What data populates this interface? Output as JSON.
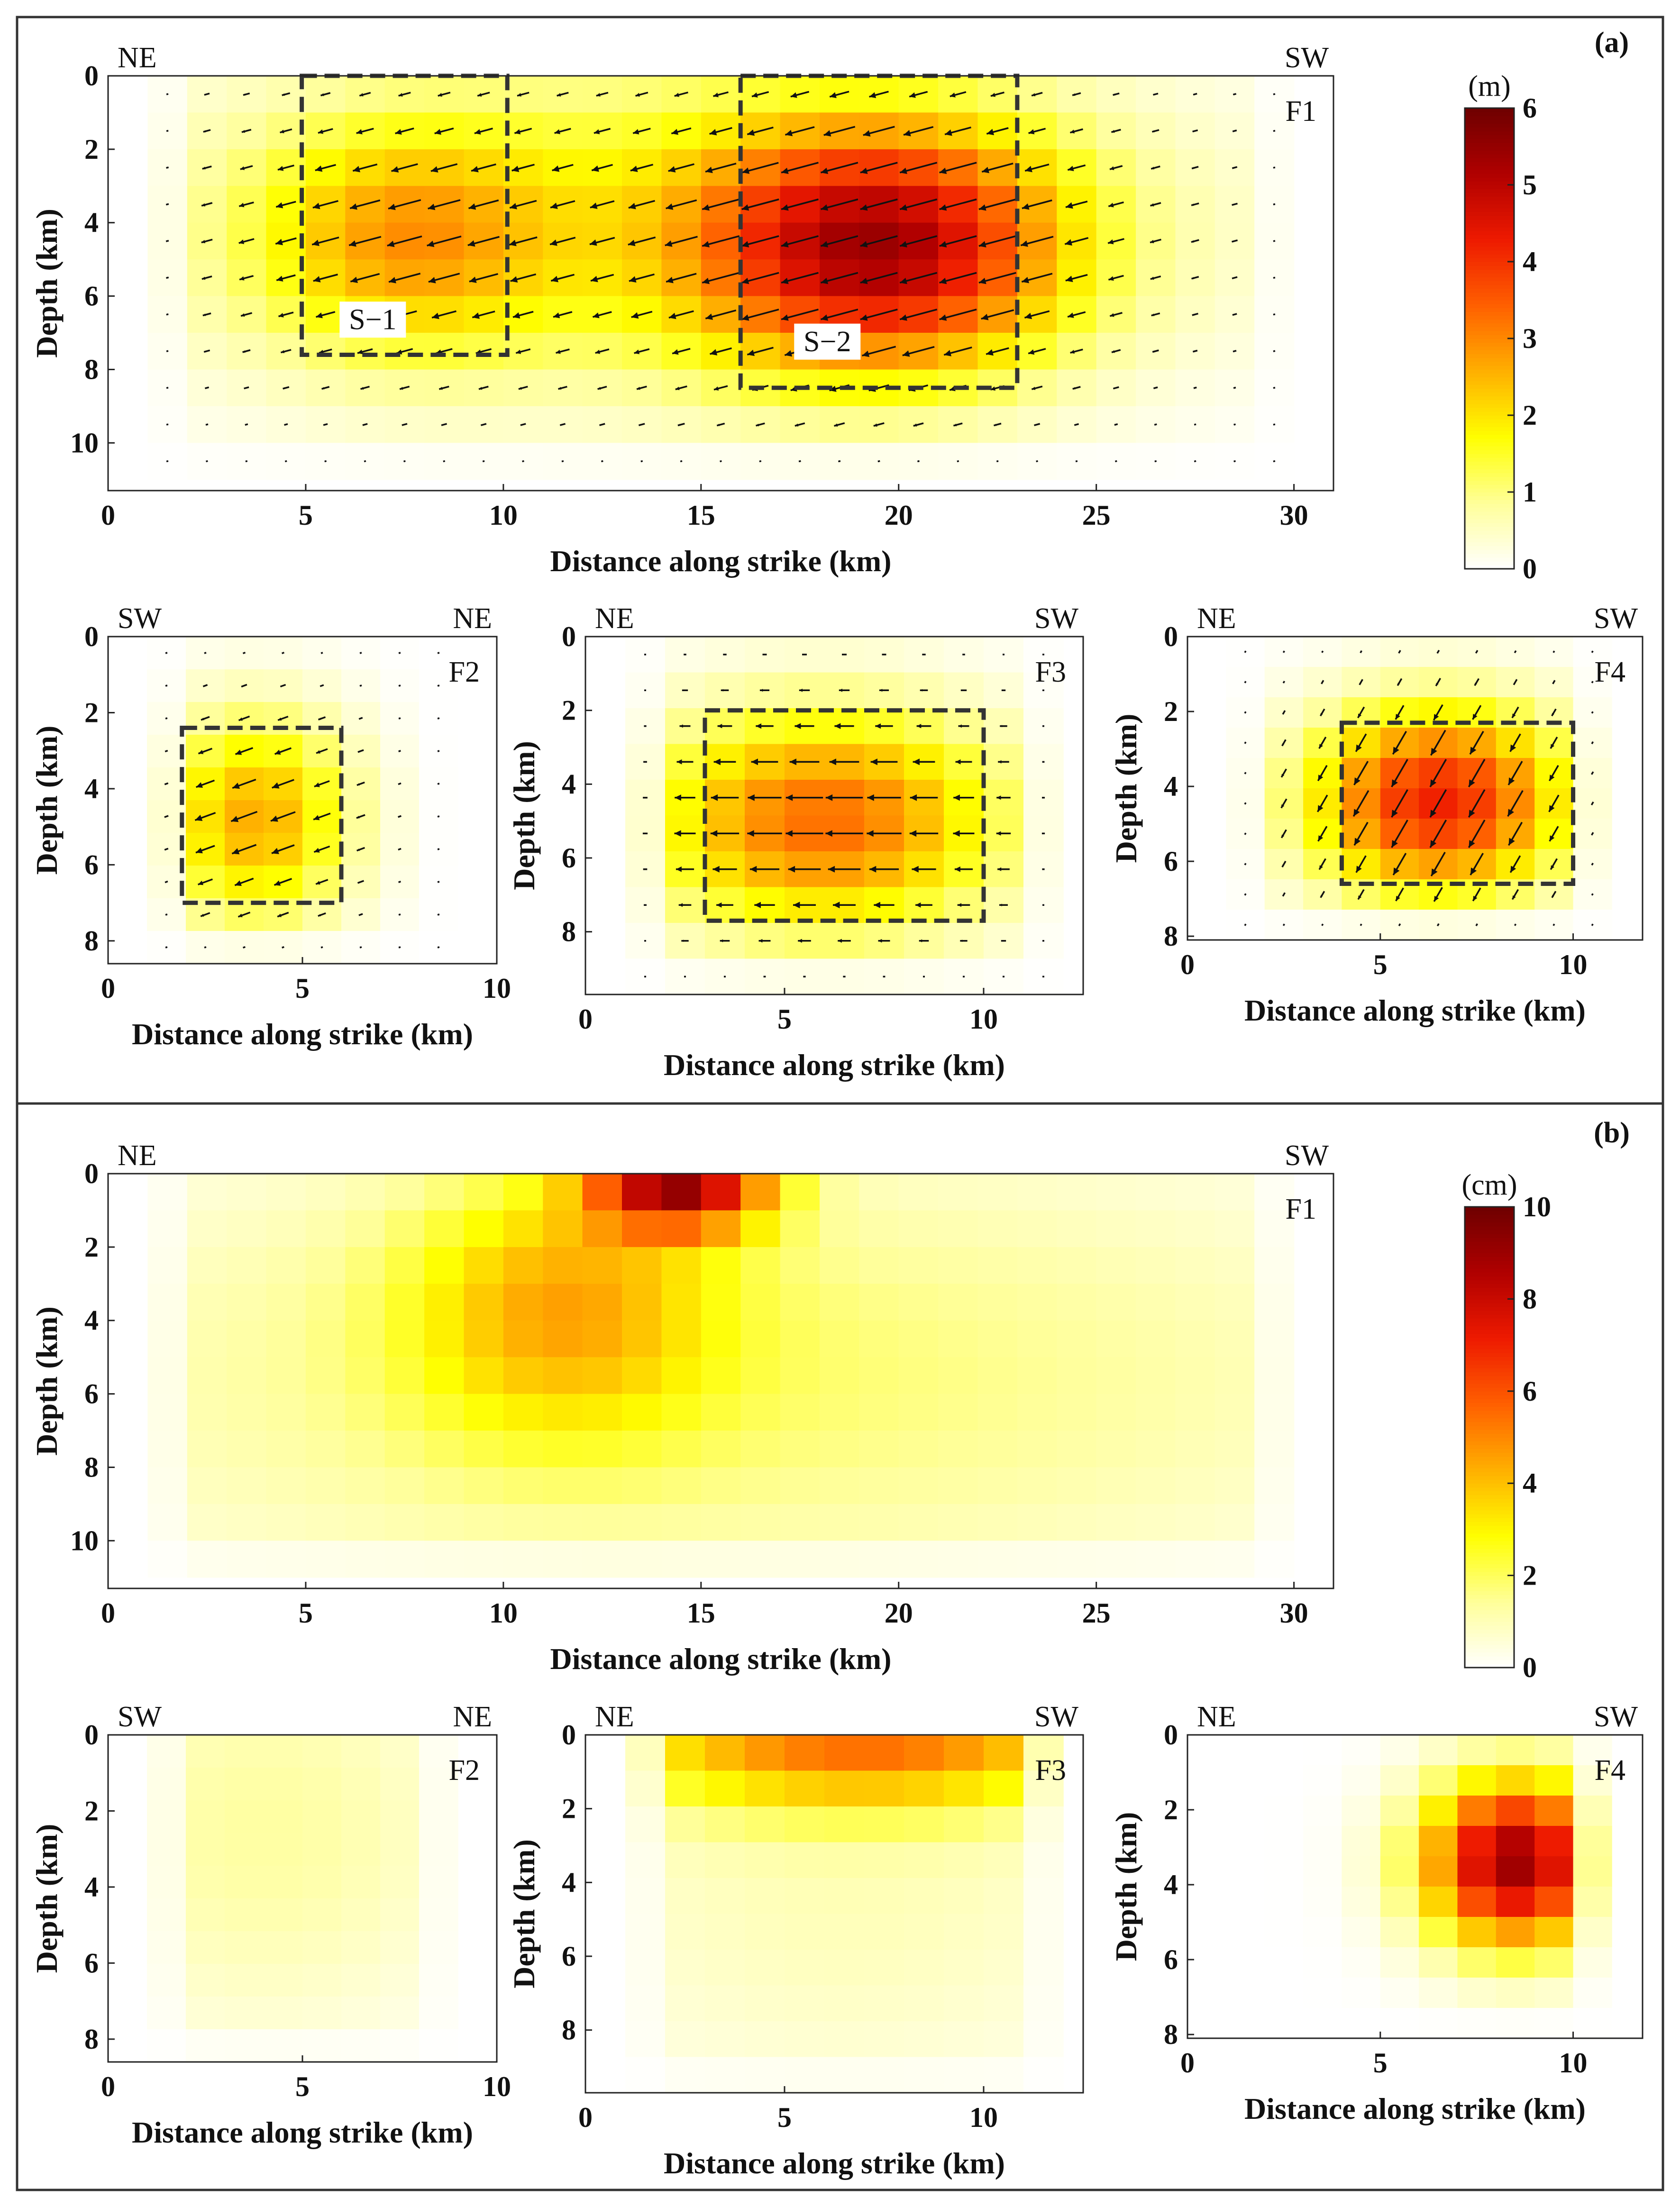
{
  "figure": {
    "panel_a_label": "(a)",
    "panel_b_label": "(b)"
  },
  "colorbars": {
    "a": {
      "unit": "(m)",
      "ticks": [
        "0",
        "1",
        "2",
        "3",
        "4",
        "5",
        "6"
      ],
      "min": 0,
      "max": 6
    },
    "b": {
      "unit": "(cm)",
      "ticks": [
        "0",
        "2",
        "4",
        "6",
        "8",
        "10"
      ],
      "min": 0,
      "max": 10
    }
  },
  "colors": {
    "colormap": [
      "#ffffff",
      "#ffff99",
      "#ffff00",
      "#ffb000",
      "#ff6000",
      "#ee1a00",
      "#b00000",
      "#6e0000"
    ],
    "box": "#333333",
    "arrow": "#111111",
    "frame": "#222222"
  },
  "chart_data": [
    {
      "id": "a-F1",
      "type": "heatmap",
      "quantity": "coseismic slip",
      "unit": "m",
      "fault": "F1",
      "left_dir": "NE",
      "right_dir": "SW",
      "xlabel": "Distance along strike (km)",
      "ylabel": "Depth (km)",
      "xlim": [
        0,
        31
      ],
      "ylim": [
        0,
        11.3
      ],
      "xticks": [
        0,
        5,
        10,
        15,
        20,
        25,
        30
      ],
      "yticks": [
        0,
        2,
        4,
        6,
        8,
        10
      ],
      "grid": {
        "x0": 1,
        "x1": 30,
        "dx": 1,
        "y0": 0,
        "y1": 11,
        "dy": 1
      },
      "asperities": [
        {
          "label": "S−1",
          "x0": 4.9,
          "x1": 10.1,
          "y0": 0,
          "y1": 7.6,
          "label_x": 6.0,
          "label_y": 6.9
        },
        {
          "label": "S−2",
          "x0": 16.0,
          "x1": 23.0,
          "y0": 0,
          "y1": 8.5,
          "label_x": 17.5,
          "label_y": 7.5
        }
      ],
      "peaks": [
        {
          "cx": 19.5,
          "cy": 4.7,
          "sx": 3.2,
          "sy": 2.4,
          "amp": 4.2
        },
        {
          "cx": 7.5,
          "cy": 4.5,
          "sx": 2.6,
          "sy": 2.2,
          "amp": 1.8
        },
        {
          "cx": 14,
          "cy": 4,
          "sx": 9,
          "sy": 3.4,
          "amp": 1.5
        }
      ],
      "max": 6,
      "arrows": true,
      "rake_deg": 195
    },
    {
      "id": "a-F2",
      "type": "heatmap",
      "quantity": "coseismic slip",
      "unit": "m",
      "fault": "F2",
      "left_dir": "SW",
      "right_dir": "NE",
      "xlabel": "Distance along strike (km)",
      "ylabel": "Depth (km)",
      "xlim": [
        0,
        10
      ],
      "ylim": [
        0,
        8.6
      ],
      "xticks": [
        0,
        5,
        10
      ],
      "yticks": [
        0,
        2,
        4,
        6,
        8
      ],
      "grid": {
        "x0": 1,
        "x1": 9,
        "dx": 1,
        "y0": 0,
        "y1": 8.6,
        "dy": 0.86
      },
      "asperities": [
        {
          "label": "",
          "x0": 1.9,
          "x1": 6.0,
          "y0": 2.4,
          "y1": 7.0
        }
      ],
      "peaks": [
        {
          "cx": 3.8,
          "cy": 4.8,
          "sx": 1.8,
          "sy": 2.0,
          "amp": 2.6
        }
      ],
      "max": 6,
      "arrows": true,
      "rake_deg": 200
    },
    {
      "id": "a-F3",
      "type": "heatmap",
      "quantity": "coseismic slip",
      "unit": "m",
      "fault": "F3",
      "left_dir": "NE",
      "right_dir": "SW",
      "xlabel": "Distance along strike (km)",
      "ylabel": "Depth (km)",
      "xlim": [
        0,
        12.5
      ],
      "ylim": [
        0,
        9.7
      ],
      "xticks": [
        0,
        5,
        10
      ],
      "yticks": [
        0,
        2,
        4,
        6,
        8
      ],
      "grid": {
        "x0": 1,
        "x1": 12,
        "dx": 1,
        "y0": 0,
        "y1": 9.7,
        "dy": 0.97
      },
      "asperities": [
        {
          "label": "",
          "x0": 3.0,
          "x1": 10.0,
          "y0": 2.0,
          "y1": 7.7
        }
      ],
      "peaks": [
        {
          "cx": 6.0,
          "cy": 5.0,
          "sx": 3.2,
          "sy": 2.2,
          "amp": 3.3
        }
      ],
      "max": 6,
      "arrows": true,
      "rake_deg": 180
    },
    {
      "id": "a-F4",
      "type": "heatmap",
      "quantity": "coseismic slip",
      "unit": "m",
      "fault": "F4",
      "left_dir": "NE",
      "right_dir": "SW",
      "xlabel": "Distance along strike (km)",
      "ylabel": "Depth (km)",
      "xlim": [
        0,
        11.8
      ],
      "ylim": [
        0,
        8.1
      ],
      "xticks": [
        0,
        5,
        10
      ],
      "yticks": [
        0,
        2,
        4,
        6,
        8
      ],
      "grid": {
        "x0": 1,
        "x1": 11,
        "dx": 1,
        "y0": 0,
        "y1": 8.1,
        "dy": 0.81
      },
      "asperities": [
        {
          "label": "",
          "x0": 4.0,
          "x1": 10.0,
          "y0": 2.3,
          "y1": 6.6
        }
      ],
      "peaks": [
        {
          "cx": 6.5,
          "cy": 4.4,
          "sx": 2.4,
          "sy": 1.8,
          "amp": 4.2
        }
      ],
      "max": 6,
      "arrows": true,
      "rake_deg": 240
    },
    {
      "id": "b-F1",
      "type": "heatmap",
      "quantity": "slip uncertainty",
      "unit": "cm",
      "fault": "F1",
      "left_dir": "NE",
      "right_dir": "SW",
      "xlabel": "Distance along strike (km)",
      "ylabel": "Depth (km)",
      "xlim": [
        0,
        31
      ],
      "ylim": [
        0,
        11.3
      ],
      "xticks": [
        0,
        5,
        10,
        15,
        20,
        25,
        30
      ],
      "yticks": [
        0,
        2,
        4,
        6,
        8,
        10
      ],
      "grid": {
        "x0": 1,
        "x1": 30,
        "dx": 1,
        "y0": 0,
        "y1": 11,
        "dy": 1
      },
      "asperities": [],
      "peaks": [
        {
          "cx": 14.5,
          "cy": 0.3,
          "sx": 1.6,
          "sy": 0.9,
          "amp": 7.5
        },
        {
          "cx": 11.5,
          "cy": 3.5,
          "sx": 2.8,
          "sy": 2.6,
          "amp": 3.0
        },
        {
          "cx": 15,
          "cy": 5.5,
          "sx": 13,
          "sy": 4.5,
          "amp": 1.8
        }
      ],
      "max": 10,
      "arrows": false
    },
    {
      "id": "b-F2",
      "type": "heatmap",
      "quantity": "slip uncertainty",
      "unit": "cm",
      "fault": "F2",
      "left_dir": "SW",
      "right_dir": "NE",
      "xlabel": "Distance along strike (km)",
      "ylabel": "Depth (km)",
      "xlim": [
        0,
        10
      ],
      "ylim": [
        0,
        8.6
      ],
      "xticks": [
        0,
        5,
        10
      ],
      "yticks": [
        0,
        2,
        4,
        6,
        8
      ],
      "grid": {
        "x0": 1,
        "x1": 9,
        "dx": 1,
        "y0": 0,
        "y1": 8.6,
        "dy": 0.86
      },
      "asperities": [],
      "peaks": [
        {
          "cx": 4,
          "cy": 2.5,
          "sx": 4,
          "sy": 4,
          "amp": 1.3
        }
      ],
      "max": 10,
      "arrows": false
    },
    {
      "id": "b-F3",
      "type": "heatmap",
      "quantity": "slip uncertainty",
      "unit": "cm",
      "fault": "F3",
      "left_dir": "NE",
      "right_dir": "SW",
      "xlabel": "Distance along strike (km)",
      "ylabel": "Depth (km)",
      "xlim": [
        0,
        12.5
      ],
      "ylim": [
        0,
        9.7
      ],
      "xticks": [
        0,
        5,
        10
      ],
      "yticks": [
        0,
        2,
        4,
        6,
        8
      ],
      "grid": {
        "x0": 1,
        "x1": 12,
        "dx": 1,
        "y0": 0,
        "y1": 9.7,
        "dy": 0.97
      },
      "asperities": [],
      "peaks": [
        {
          "cx": 7,
          "cy": 0.2,
          "sx": 4.5,
          "sy": 1.3,
          "amp": 4.8
        },
        {
          "cx": 6.5,
          "cy": 4,
          "sx": 6,
          "sy": 4.5,
          "amp": 1.0
        }
      ],
      "max": 10,
      "arrows": false
    },
    {
      "id": "b-F4",
      "type": "heatmap",
      "quantity": "slip uncertainty",
      "unit": "cm",
      "fault": "F4",
      "left_dir": "NE",
      "right_dir": "SW",
      "xlabel": "Distance along strike (km)",
      "ylabel": "Depth (km)",
      "xlim": [
        0,
        11.8
      ],
      "ylim": [
        0,
        8.1
      ],
      "xticks": [
        0,
        5,
        10
      ],
      "yticks": [
        0,
        2,
        4,
        6,
        8
      ],
      "grid": {
        "x0": 1,
        "x1": 11,
        "dx": 1,
        "y0": 0,
        "y1": 8.1,
        "dy": 0.81
      },
      "asperities": [],
      "peaks": [
        {
          "cx": 8.5,
          "cy": 3.4,
          "sx": 1.7,
          "sy": 1.6,
          "amp": 9.0
        }
      ],
      "max": 10,
      "arrows": false
    }
  ]
}
